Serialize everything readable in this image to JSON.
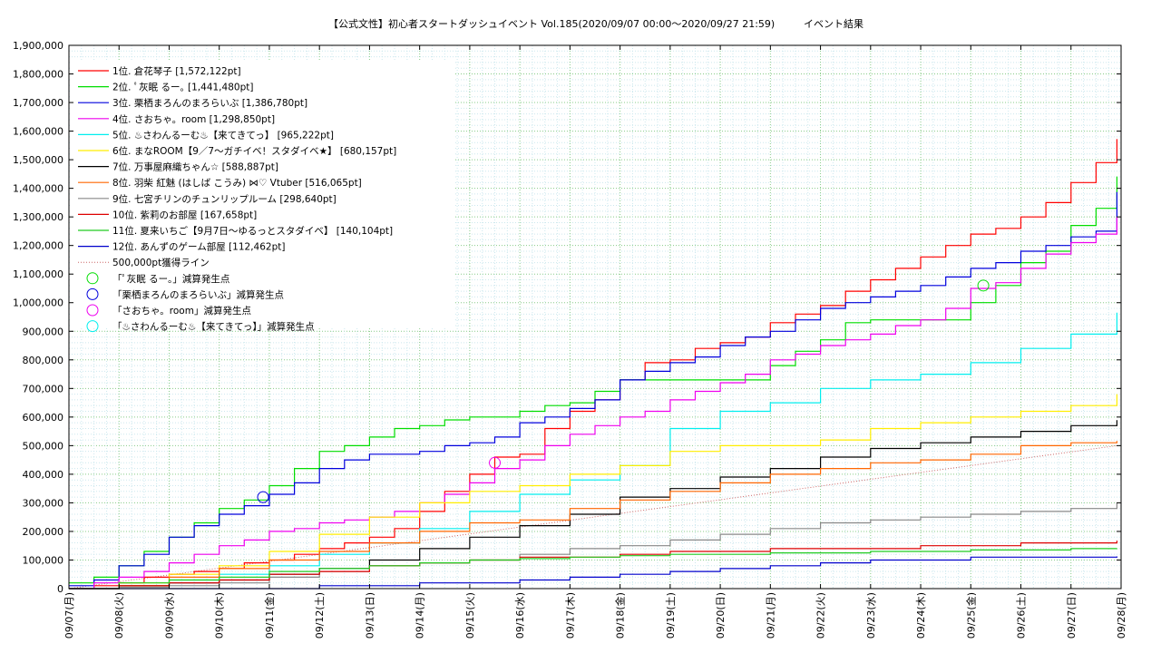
{
  "chart_data": {
    "type": "line",
    "title": "【公式文性】初心者スタートダッシュイベント Vol.185(2020/09/07 00:00～2020/09/27 21:59)",
    "subtitle": "イベント結果",
    "xlabel": "",
    "ylabel": "",
    "ylim": [
      0,
      1900000
    ],
    "yticks": [
      "0",
      "100,000",
      "200,000",
      "300,000",
      "400,000",
      "500,000",
      "600,000",
      "700,000",
      "800,000",
      "900,000",
      "1,000,000",
      "1,100,000",
      "1,200,000",
      "1,300,000",
      "1,400,000",
      "1,500,000",
      "1,600,000",
      "1,700,000",
      "1,800,000",
      "1,900,000"
    ],
    "x_day_range": [
      0,
      21
    ],
    "xticks": [
      "09/07(月)",
      "09/08(火)",
      "09/09(水)",
      "09/10(木)",
      "09/11(金)",
      "09/12(土)",
      "09/13(日)",
      "09/14(月)",
      "09/15(火)",
      "09/16(水)",
      "09/17(木)",
      "09/18(金)",
      "09/19(土)",
      "09/20(日)",
      "09/21(月)",
      "09/22(火)",
      "09/23(水)",
      "09/24(木)",
      "09/25(金)",
      "09/26(土)",
      "09/27(日)",
      "09/28(月)"
    ],
    "grid": true,
    "legend_position": "top-left",
    "series": [
      {
        "name": "1位. 倉花琴子 [1,572,122pt]",
        "color": "#ff0000",
        "x": [
          "09/07",
          "09/07 12:00",
          "09/08",
          "09/08 12:00",
          "09/09",
          "09/09 12:00",
          "09/10",
          "09/10 12:00",
          "09/11",
          "09/11 12:00",
          "09/12",
          "09/12 12:00",
          "09/13",
          "09/13 12:00",
          "09/14",
          "09/14 12:00",
          "09/15",
          "09/15 12:00",
          "09/16",
          "09/16 12:00",
          "09/17",
          "09/17 12:00",
          "09/18",
          "09/18 12:00",
          "09/19",
          "09/19 12:00",
          "09/20",
          "09/20 12:00",
          "09/21",
          "09/21 12:00",
          "09/22",
          "09/22 12:00",
          "09/23",
          "09/23 12:00",
          "09/24",
          "09/24 12:00",
          "09/25",
          "09/25 12:00",
          "09/26",
          "09/26 12:00",
          "09/27",
          "09/27 12:00",
          "09/27 21:59"
        ],
        "y": [
          0,
          10000,
          20000,
          40000,
          50000,
          60000,
          70000,
          90000,
          100000,
          120000,
          140000,
          160000,
          180000,
          210000,
          270000,
          340000,
          400000,
          460000,
          470000,
          560000,
          620000,
          660000,
          730000,
          790000,
          800000,
          840000,
          860000,
          880000,
          930000,
          960000,
          990000,
          1040000,
          1080000,
          1120000,
          1160000,
          1200000,
          1240000,
          1260000,
          1300000,
          1350000,
          1420000,
          1490000,
          1572122
        ]
      },
      {
        "name": "2位. ﾟ灰眠 るー｡ [1,441,480pt]",
        "color": "#00dd00",
        "x": [
          "09/07",
          "09/07 12:00",
          "09/08",
          "09/08 12:00",
          "09/09",
          "09/09 12:00",
          "09/10",
          "09/10 12:00",
          "09/11",
          "09/11 12:00",
          "09/12",
          "09/12 12:00",
          "09/13",
          "09/13 12:00",
          "09/14",
          "09/14 12:00",
          "09/15",
          "09/15 12:00",
          "09/16",
          "09/16 12:00",
          "09/17",
          "09/17 12:00",
          "09/18",
          "09/18 12:00",
          "09/19",
          "09/19 12:00",
          "09/20",
          "09/20 12:00",
          "09/21",
          "09/21 12:00",
          "09/22",
          "09/22 12:00",
          "09/23",
          "09/23 12:00",
          "09/24",
          "09/24 12:00",
          "09/25",
          "09/25 12:00",
          "09/26",
          "09/26 12:00",
          "09/27",
          "09/27 12:00",
          "09/27 21:59"
        ],
        "y": [
          20000,
          40000,
          80000,
          130000,
          180000,
          230000,
          280000,
          310000,
          360000,
          420000,
          480000,
          500000,
          530000,
          560000,
          570000,
          590000,
          600000,
          600000,
          620000,
          640000,
          650000,
          690000,
          730000,
          730000,
          730000,
          730000,
          730000,
          730000,
          780000,
          830000,
          870000,
          930000,
          940000,
          940000,
          940000,
          940000,
          1000000,
          1060000,
          1140000,
          1180000,
          1270000,
          1330000,
          1441480
        ]
      },
      {
        "name": "3位. 栗栖まろんのまろらいぶ [1,386,780pt]",
        "color": "#0000dd",
        "x": [
          "09/07",
          "09/07 12:00",
          "09/08",
          "09/08 12:00",
          "09/09",
          "09/09 12:00",
          "09/10",
          "09/10 12:00",
          "09/11",
          "09/11 12:00",
          "09/12",
          "09/12 12:00",
          "09/13",
          "09/13 12:00",
          "09/14",
          "09/14 12:00",
          "09/15",
          "09/15 12:00",
          "09/16",
          "09/16 12:00",
          "09/17",
          "09/17 12:00",
          "09/18",
          "09/18 12:00",
          "09/19",
          "09/19 12:00",
          "09/20",
          "09/20 12:00",
          "09/21",
          "09/21 12:00",
          "09/22",
          "09/22 12:00",
          "09/23",
          "09/23 12:00",
          "09/24",
          "09/24 12:00",
          "09/25",
          "09/25 12:00",
          "09/26",
          "09/26 12:00",
          "09/27",
          "09/27 12:00",
          "09/27 21:59"
        ],
        "y": [
          10000,
          30000,
          80000,
          120000,
          180000,
          220000,
          260000,
          290000,
          330000,
          370000,
          420000,
          450000,
          470000,
          470000,
          480000,
          500000,
          510000,
          530000,
          580000,
          600000,
          630000,
          660000,
          730000,
          760000,
          790000,
          810000,
          850000,
          880000,
          900000,
          940000,
          980000,
          1000000,
          1020000,
          1040000,
          1060000,
          1090000,
          1120000,
          1140000,
          1180000,
          1200000,
          1230000,
          1250000,
          1386780
        ]
      },
      {
        "name": "4位. さおちゃ。room [1,298,850pt]",
        "color": "#ee00ee",
        "x": [
          "09/07",
          "09/07 12:00",
          "09/08",
          "09/08 12:00",
          "09/09",
          "09/09 12:00",
          "09/10",
          "09/10 12:00",
          "09/11",
          "09/11 12:00",
          "09/12",
          "09/12 12:00",
          "09/13",
          "09/13 12:00",
          "09/14",
          "09/14 12:00",
          "09/15",
          "09/15 12:00",
          "09/16",
          "09/16 12:00",
          "09/17",
          "09/17 12:00",
          "09/18",
          "09/18 12:00",
          "09/19",
          "09/19 12:00",
          "09/20",
          "09/20 12:00",
          "09/21",
          "09/21 12:00",
          "09/22",
          "09/22 12:00",
          "09/23",
          "09/23 12:00",
          "09/24",
          "09/24 12:00",
          "09/25",
          "09/25 12:00",
          "09/26",
          "09/26 12:00",
          "09/27",
          "09/27 12:00",
          "09/27 21:59"
        ],
        "y": [
          0,
          20000,
          40000,
          60000,
          90000,
          120000,
          150000,
          170000,
          200000,
          210000,
          230000,
          240000,
          250000,
          270000,
          300000,
          330000,
          370000,
          420000,
          450000,
          500000,
          540000,
          570000,
          600000,
          620000,
          660000,
          690000,
          720000,
          750000,
          800000,
          820000,
          850000,
          870000,
          890000,
          920000,
          940000,
          980000,
          1050000,
          1070000,
          1120000,
          1170000,
          1210000,
          1240000,
          1298850
        ]
      },
      {
        "name": "5位. ♨さわんるーむ♨【来てきてっ】 [965,222pt]",
        "color": "#00eeee",
        "x": [
          "09/07",
          "09/08",
          "09/09",
          "09/10",
          "09/11",
          "09/12",
          "09/13",
          "09/14",
          "09/15",
          "09/16",
          "09/17",
          "09/18",
          "09/19",
          "09/20",
          "09/21",
          "09/22",
          "09/23",
          "09/24",
          "09/25",
          "09/26",
          "09/27",
          "09/27 21:59"
        ],
        "y": [
          0,
          10000,
          30000,
          50000,
          80000,
          120000,
          160000,
          210000,
          270000,
          330000,
          380000,
          430000,
          560000,
          620000,
          650000,
          700000,
          730000,
          750000,
          790000,
          840000,
          890000,
          965222
        ]
      },
      {
        "name": "6位. まなROOM【9／7～ガチイベ！スタダイベ★】 [680,157pt]",
        "color": "#ffee00",
        "x": [
          "09/07",
          "09/08",
          "09/09",
          "09/10",
          "09/11",
          "09/12",
          "09/13",
          "09/14",
          "09/15",
          "09/16",
          "09/17",
          "09/18",
          "09/19",
          "09/20",
          "09/21",
          "09/22",
          "09/23",
          "09/24",
          "09/25",
          "09/26",
          "09/27",
          "09/27 21:59"
        ],
        "y": [
          0,
          20000,
          50000,
          80000,
          130000,
          190000,
          250000,
          300000,
          340000,
          360000,
          400000,
          430000,
          480000,
          500000,
          500000,
          520000,
          560000,
          580000,
          600000,
          620000,
          640000,
          680157
        ]
      },
      {
        "name": "7位. 万事屋麻織ちゃん☆ [588,887pt]",
        "color": "#000000",
        "x": [
          "09/07",
          "09/08",
          "09/09",
          "09/10",
          "09/11",
          "09/12",
          "09/13",
          "09/14",
          "09/15",
          "09/16",
          "09/17",
          "09/18",
          "09/19",
          "09/20",
          "09/21",
          "09/22",
          "09/23",
          "09/24",
          "09/25",
          "09/26",
          "09/27",
          "09/27 21:59"
        ],
        "y": [
          0,
          10000,
          20000,
          30000,
          50000,
          70000,
          100000,
          140000,
          180000,
          220000,
          260000,
          320000,
          350000,
          390000,
          420000,
          460000,
          490000,
          510000,
          530000,
          550000,
          570000,
          588887
        ]
      },
      {
        "name": "8位. 羽柴 紅魅 (はしば こうみ) ⋈♡ Vtuber [516,065pt]",
        "color": "#ff6600",
        "x": [
          "09/07",
          "09/08",
          "09/09",
          "09/10",
          "09/11",
          "09/12",
          "09/13",
          "09/14",
          "09/15",
          "09/16",
          "09/17",
          "09/18",
          "09/19",
          "09/20",
          "09/21",
          "09/22",
          "09/23",
          "09/24",
          "09/25",
          "09/26",
          "09/27",
          "09/27 21:59"
        ],
        "y": [
          0,
          10000,
          40000,
          70000,
          100000,
          130000,
          160000,
          200000,
          230000,
          240000,
          280000,
          310000,
          340000,
          370000,
          400000,
          420000,
          440000,
          450000,
          470000,
          500000,
          510000,
          516065
        ]
      },
      {
        "name": "9位. 七宮チリンのチュンリップルーム [298,640pt]",
        "color": "#888888",
        "x": [
          "09/07",
          "09/08",
          "09/09",
          "09/10",
          "09/11",
          "09/12",
          "09/13",
          "09/14",
          "09/15",
          "09/16",
          "09/17",
          "09/18",
          "09/19",
          "09/20",
          "09/21",
          "09/22",
          "09/23",
          "09/24",
          "09/25",
          "09/26",
          "09/27",
          "09/27 21:59"
        ],
        "y": [
          0,
          5000,
          10000,
          20000,
          40000,
          60000,
          80000,
          90000,
          100000,
          120000,
          140000,
          150000,
          170000,
          190000,
          210000,
          230000,
          240000,
          250000,
          260000,
          270000,
          280000,
          298640
        ]
      },
      {
        "name": "10位. 紫莉のお部屋 [167,658pt]",
        "color": "#dd0000",
        "x": [
          "09/07",
          "09/08",
          "09/09",
          "09/10",
          "09/11",
          "09/12",
          "09/13",
          "09/14",
          "09/15",
          "09/16",
          "09/17",
          "09/18",
          "09/19",
          "09/20",
          "09/21",
          "09/22",
          "09/23",
          "09/24",
          "09/25",
          "09/26",
          "09/27",
          "09/27 21:59"
        ],
        "y": [
          0,
          10000,
          20000,
          30000,
          50000,
          60000,
          80000,
          90000,
          100000,
          110000,
          110000,
          120000,
          130000,
          130000,
          140000,
          140000,
          140000,
          150000,
          150000,
          160000,
          160000,
          167658
        ]
      },
      {
        "name": "11位. 夏来いちご【9月7日～ゆるっとスタダイベ】 [140,104pt]",
        "color": "#22cc22",
        "x": [
          "09/07",
          "09/08",
          "09/09",
          "09/10",
          "09/11",
          "09/12",
          "09/13",
          "09/14",
          "09/15",
          "09/16",
          "09/17",
          "09/18",
          "09/19",
          "09/20",
          "09/21",
          "09/22",
          "09/23",
          "09/24",
          "09/25",
          "09/26",
          "09/27",
          "09/27 21:59"
        ],
        "y": [
          0,
          20000,
          30000,
          40000,
          60000,
          70000,
          80000,
          90000,
          100000,
          105000,
          110000,
          115000,
          120000,
          120000,
          125000,
          125000,
          130000,
          130000,
          135000,
          135000,
          140000,
          140104
        ]
      },
      {
        "name": "12位. あんずのゲーム部屋 [112,462pt]",
        "color": "#0000cc",
        "x": [
          "09/07",
          "09/08",
          "09/09",
          "09/10",
          "09/11",
          "09/12",
          "09/13",
          "09/14",
          "09/15",
          "09/16",
          "09/17",
          "09/18",
          "09/19",
          "09/20",
          "09/21",
          "09/22",
          "09/23",
          "09/24",
          "09/25",
          "09/26",
          "09/27",
          "09/27 21:59"
        ],
        "y": [
          0,
          0,
          0,
          0,
          0,
          10000,
          10000,
          20000,
          20000,
          30000,
          40000,
          50000,
          60000,
          70000,
          80000,
          90000,
          100000,
          100000,
          110000,
          110000,
          110000,
          112462
        ]
      }
    ],
    "reference_line": {
      "name": "500,000pt獲得ライン",
      "color": "#cc6666",
      "x": [
        "09/07",
        "09/27 21:59"
      ],
      "y": [
        0,
        500000
      ]
    },
    "markers": [
      {
        "name": "「ﾟ灰眠 るー｡」減算発生点",
        "color": "#00dd00",
        "x": "09/25 06:00",
        "y": 1060000
      },
      {
        "name": "「栗栖まろんのまろらいぶ」減算発生点",
        "color": "#0000dd",
        "x": "09/10 21:00",
        "y": 320000
      },
      {
        "name": "「さおちゃ。room」減算発生点",
        "color": "#ee00ee",
        "x": "09/15 12:00",
        "y": 440000
      },
      {
        "name": "「♨さわんるーむ♨【来てきてっ】」減算発生点",
        "color": "#00eeee",
        "x": "",
        "y": null
      }
    ]
  }
}
